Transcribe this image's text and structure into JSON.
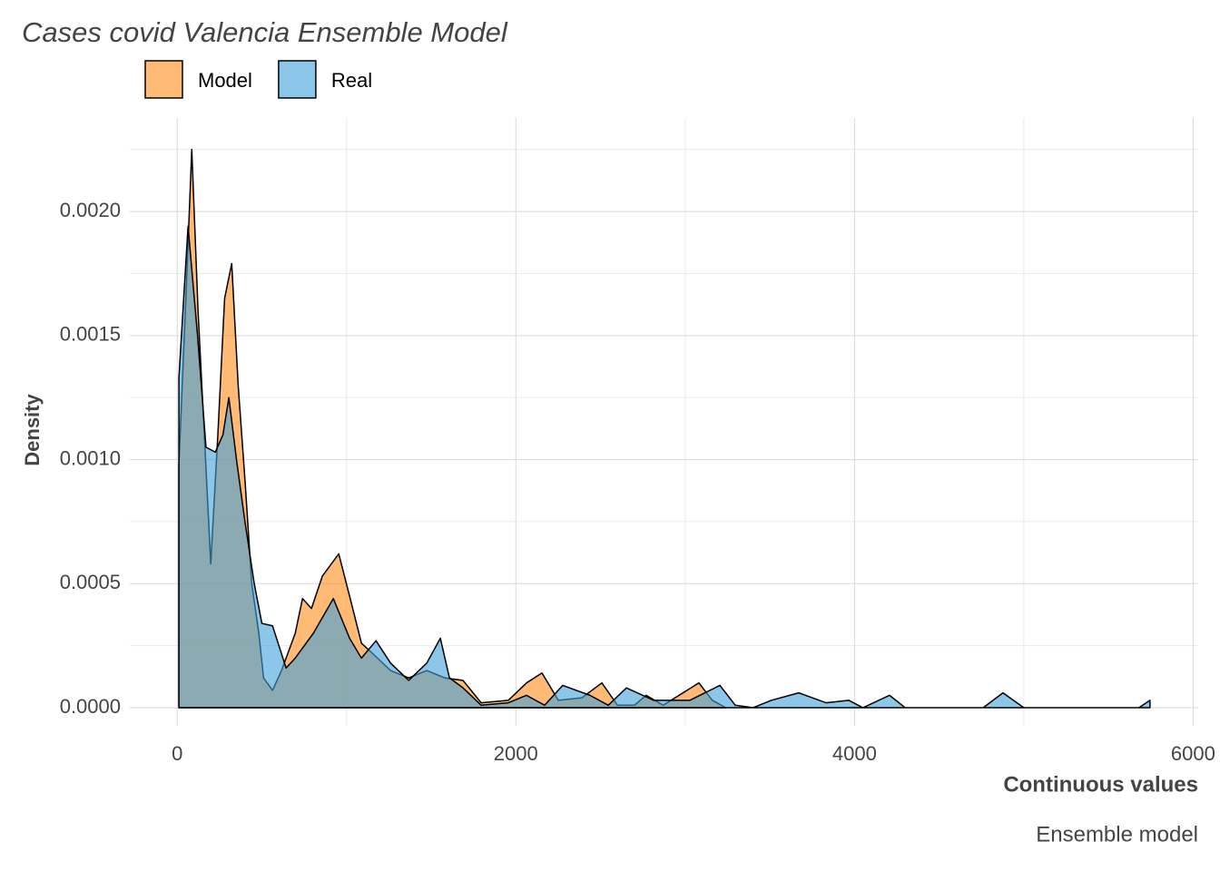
{
  "chart_data": {
    "type": "density",
    "title": "Cases covid Valencia Ensemble Model",
    "xlabel": "Continuous values",
    "ylabel": "Density",
    "caption": "Ensemble model",
    "xlim": [
      -280,
      6030
    ],
    "ylim": [
      -7.3e-05,
      0.002377
    ],
    "xticks": [
      0,
      2000,
      4000,
      6000
    ],
    "yticks": [
      {
        "value": 0,
        "label": "0.0000"
      },
      {
        "value": 0.0005,
        "label": "0.0005"
      },
      {
        "value": 0.001,
        "label": "0.0010"
      },
      {
        "value": 0.0015,
        "label": "0.0015"
      },
      {
        "value": 0.002,
        "label": "0.0020"
      }
    ],
    "x_minor_grid": [
      1000,
      3000,
      5000
    ],
    "y_minor_grid": [
      0.00025,
      0.00075,
      0.00125,
      0.00175,
      0.00225
    ],
    "grid": true,
    "series": [
      {
        "name": "Model",
        "color": "#ff8c1a",
        "x": [
          10,
          54,
          86,
          123,
          160,
          198,
          240,
          280,
          322,
          360,
          402,
          440,
          482,
          510,
          563,
          616,
          697,
          740,
          793,
          857,
          954,
          1018,
          1088,
          1152,
          1260,
          1367,
          1474,
          1581,
          1688,
          1795,
          1956,
          2063,
          2154,
          2251,
          2390,
          2508,
          2600,
          2700,
          2770,
          2870,
          3081,
          3160,
          3240
        ],
        "values": [
          0.00098,
          0.0017,
          0.00225,
          0.0016,
          0.0011,
          0.00058,
          0.0011,
          0.00165,
          0.00179,
          0.0013,
          0.0009,
          0.0005,
          0.0003,
          0.00012,
          7e-05,
          0.00015,
          0.0003,
          0.00044,
          0.0004,
          0.00053,
          0.00062,
          0.00045,
          0.00026,
          0.00022,
          0.00015,
          0.00012,
          0.00015,
          0.00012,
          0.00011,
          2e-05,
          3e-05,
          0.0001,
          0.00014,
          3e-05,
          4e-05,
          0.0001,
          1e-05,
          1e-05,
          5e-05,
          1e-05,
          0.0001,
          3e-05,
          0
        ]
      },
      {
        "name": "Real",
        "color": "#3fa0d8",
        "x": [
          10,
          64,
          120,
          170,
          225,
          270,
          305,
          350,
          400,
          455,
          500,
          563,
          643,
          697,
          804,
          922,
          1018,
          1088,
          1174,
          1260,
          1367,
          1474,
          1554,
          1608,
          1688,
          1795,
          1956,
          2063,
          2170,
          2277,
          2438,
          2546,
          2653,
          2813,
          3028,
          3205,
          3296,
          3400,
          3510,
          3671,
          3832,
          3966,
          4050,
          4207,
          4300,
          4760,
          4877,
          5000,
          5680,
          5745
        ],
        "values": [
          0.00133,
          0.00194,
          0.0015,
          0.00105,
          0.00103,
          0.0011,
          0.00125,
          0.001,
          0.00075,
          0.0005,
          0.00034,
          0.00033,
          0.00016,
          0.0002,
          0.0003,
          0.00044,
          0.00028,
          0.0002,
          0.00027,
          0.00018,
          0.00011,
          0.00018,
          0.00028,
          0.00012,
          8e-05,
          1e-05,
          2e-05,
          5e-05,
          1e-05,
          9e-05,
          5e-05,
          1e-05,
          8e-05,
          3e-05,
          3e-05,
          9e-05,
          1e-05,
          0,
          3e-05,
          6e-05,
          2e-05,
          3e-05,
          0,
          5e-05,
          0,
          0,
          6e-05,
          0,
          0,
          3e-05
        ]
      }
    ]
  }
}
